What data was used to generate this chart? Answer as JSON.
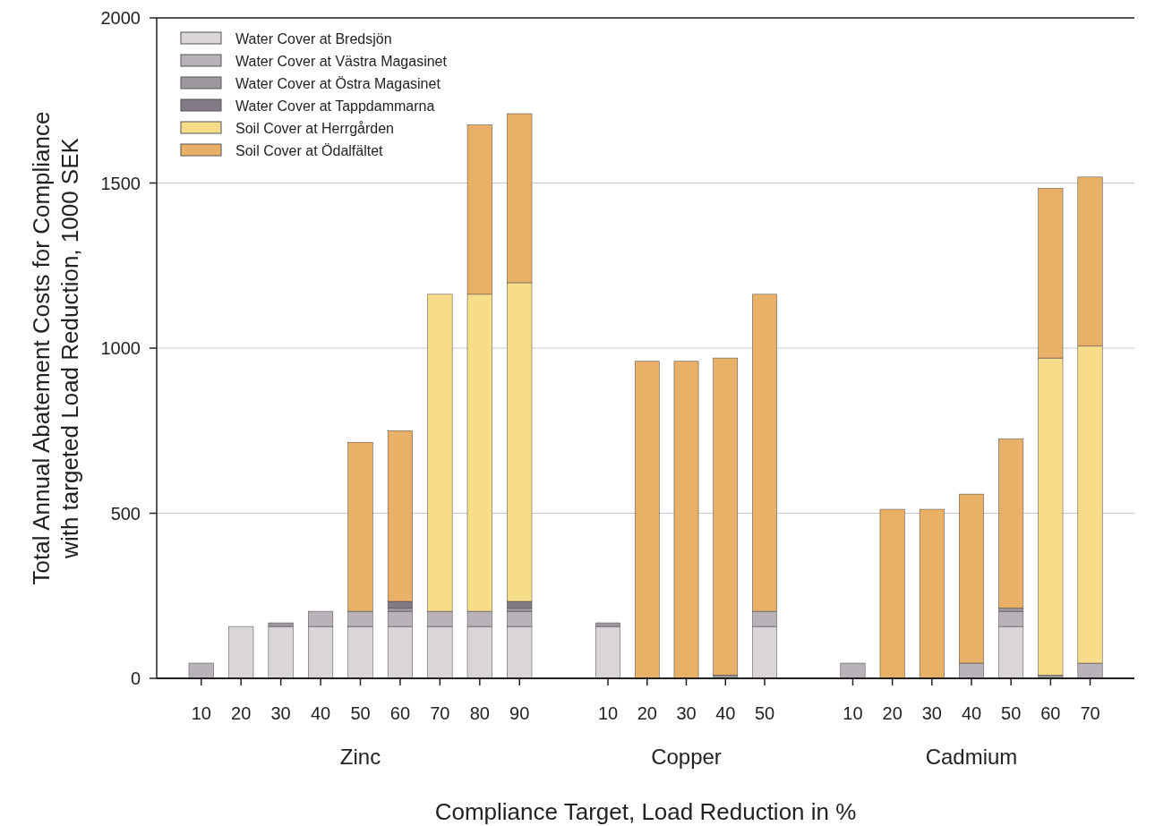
{
  "chart_data": [
    {
      "type": "bar",
      "stacked": true,
      "xlabel": "Zinc",
      "ylabel": "Total Annual Abatement Costs for Compliance\nwith targeted Load Reduction, 1000 SEK",
      "categories": [
        "10",
        "20",
        "30",
        "40",
        "50",
        "60",
        "70",
        "80",
        "90"
      ],
      "ylim": [
        0,
        2000
      ],
      "yticks": [
        0,
        500,
        1000,
        1500,
        2000
      ],
      "grid": "y",
      "legend": "top left",
      "series": [
        {
          "name": "Water Cover at Bredsjön",
          "color": "#dad5d9",
          "values": [
            null,
            157,
            157,
            157,
            157,
            157,
            157,
            157,
            157
          ]
        },
        {
          "name": "Water Cover at Västra Magasinet",
          "color": "#b9b2b8",
          "values": [
            46,
            null,
            null,
            46,
            46,
            46,
            46,
            46,
            46
          ]
        },
        {
          "name": "Water Cover at Östra Magasinet",
          "color": "#9f98a1",
          "values": [
            null,
            null,
            11,
            null,
            null,
            10,
            null,
            null,
            10
          ]
        },
        {
          "name": "Water Cover at Tappdammarna",
          "color": "#827a85",
          "values": [
            null,
            null,
            null,
            null,
            null,
            20,
            null,
            null,
            20
          ]
        },
        {
          "name": "Soil Cover at Herrgården",
          "color": "#f7dc8a",
          "values": [
            null,
            null,
            null,
            null,
            null,
            null,
            960,
            960,
            965
          ]
        },
        {
          "name": "Soil Cover at Ödalfältet",
          "color": "#e9b068",
          "values": [
            null,
            null,
            null,
            null,
            512,
            517,
            null,
            513,
            512
          ]
        }
      ]
    },
    {
      "type": "bar",
      "stacked": true,
      "xlabel": "Copper",
      "categories": [
        "10",
        "20",
        "30",
        "40",
        "50"
      ],
      "ylim": [
        0,
        2000
      ],
      "yticks": [
        0,
        500,
        1000,
        1500,
        2000
      ],
      "grid": "y",
      "tick_labels": "x",
      "annotations": [
        "Compliance Target, Load Reduction in %"
      ],
      "series": [
        {
          "color": "#dad5d9",
          "values": [
            157,
            null,
            null,
            null,
            157
          ]
        },
        {
          "color": "#b9b2b8",
          "values": [
            null,
            null,
            null,
            null,
            46
          ]
        },
        {
          "color": "#9f98a1",
          "values": [
            11,
            null,
            null,
            10,
            null
          ]
        },
        {
          "color": "#e9b068",
          "values": [
            null,
            960,
            960,
            960,
            960
          ]
        }
      ]
    },
    {
      "type": "bar",
      "stacked": true,
      "xlabel": "Cadmium",
      "categories": [
        "10",
        "20",
        "30",
        "40",
        "50",
        "60",
        "70"
      ],
      "ylim": [
        0,
        2000
      ],
      "yticks": [
        0,
        500,
        1000,
        1500,
        2000
      ],
      "grid": "y",
      "tick_labels": "x",
      "series": [
        {
          "color": "#dad5d9",
          "values": [
            null,
            null,
            null,
            null,
            157,
            null,
            null
          ]
        },
        {
          "color": "#b9b2b8",
          "values": [
            46,
            null,
            null,
            46,
            46,
            null,
            46
          ]
        },
        {
          "color": "#9f98a1",
          "values": [
            null,
            null,
            null,
            null,
            10,
            10,
            null
          ]
        },
        {
          "color": "#f7dc8a",
          "values": [
            null,
            null,
            null,
            null,
            null,
            960,
            960
          ]
        },
        {
          "color": "#e9b068",
          "values": [
            null,
            512,
            512,
            512,
            512,
            514,
            512
          ]
        }
      ]
    }
  ]
}
